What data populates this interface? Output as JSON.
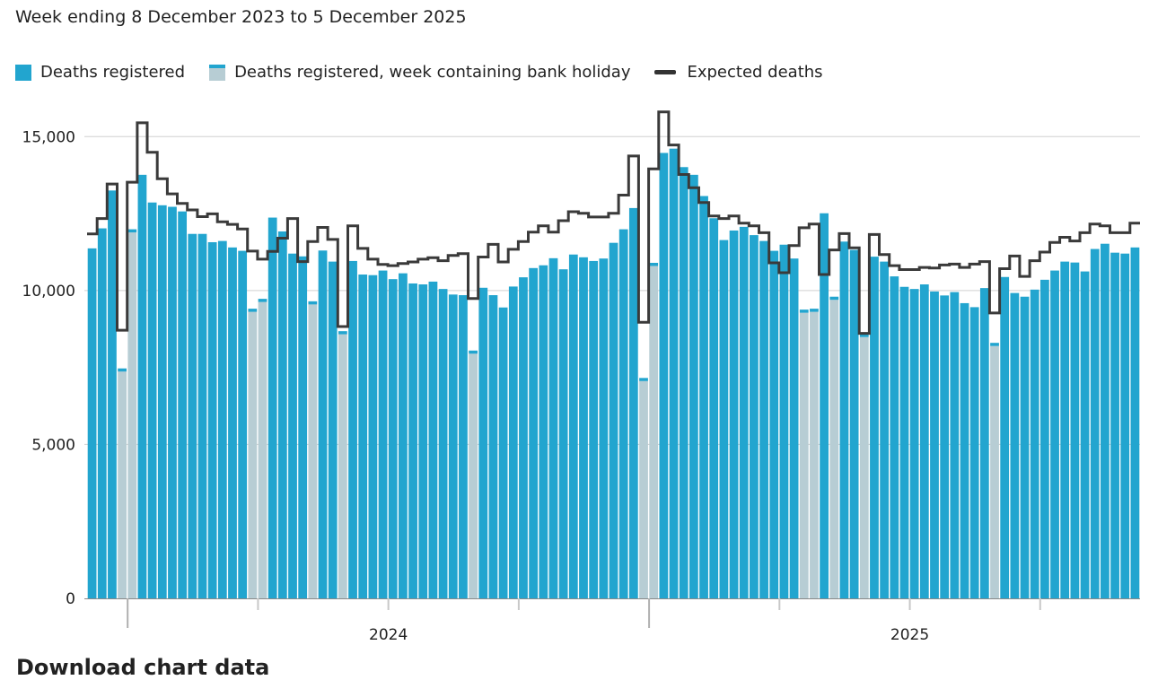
{
  "chart_data": {
    "type": "bar",
    "title": "Week ending 8 December 2023 to 5 December 2025",
    "xlabel": "",
    "ylabel": "",
    "ylim": [
      0,
      16000
    ],
    "grid": "horizontal",
    "legend_position": "top-left",
    "y_ticks": [
      {
        "value": 0,
        "label": "0"
      },
      {
        "value": 5000,
        "label": "5,000"
      },
      {
        "value": 10000,
        "label": "10,000"
      },
      {
        "value": 15000,
        "label": "15,000"
      }
    ],
    "x_year_labels": [
      {
        "label": "2024",
        "week_index": 30
      },
      {
        "label": "2025",
        "week_index": 82
      }
    ],
    "x_year_boundary_weeks": [
      4,
      56
    ],
    "x_quarter_tick_weeks": [
      17,
      30,
      43,
      69,
      82,
      95
    ],
    "legend": [
      {
        "key": "deaths",
        "label": "Deaths registered",
        "color": "#22a5cf",
        "kind": "bar"
      },
      {
        "key": "holiday",
        "label": "Deaths registered, week containing bank holiday",
        "color": "#b7cdd4",
        "kind": "bar"
      },
      {
        "key": "expected",
        "label": "Expected deaths",
        "color": "#333333",
        "kind": "line"
      }
    ],
    "holiday_weeks": [
      4,
      5,
      17,
      18,
      23,
      26,
      39,
      56,
      57,
      72,
      73,
      75,
      78,
      91
    ],
    "series": [
      {
        "name": "Deaths registered",
        "type": "bar",
        "values": [
          11370,
          12020,
          13250,
          7470,
          11990,
          13760,
          12860,
          12770,
          12720,
          12570,
          11840,
          11840,
          11570,
          11610,
          11400,
          11290,
          9410,
          9730,
          12370,
          11920,
          11200,
          11110,
          9650,
          11300,
          10940,
          8680,
          10960,
          10520,
          10500,
          10650,
          10370,
          10560,
          10230,
          10200,
          10290,
          10050,
          9870,
          9850,
          8050,
          10090,
          9850,
          9450,
          10130,
          10430,
          10730,
          10820,
          11050,
          10690,
          11170,
          11080,
          10960,
          11040,
          11550,
          11990,
          12680,
          7160,
          10900,
          14470,
          14610,
          14010,
          13760,
          13070,
          12350,
          11640,
          11950,
          12070,
          11800,
          11610,
          11290,
          11490,
          11040,
          9380,
          9410,
          12510,
          9800,
          11590,
          11320,
          8590,
          11100,
          10940,
          10460,
          10120,
          10050,
          10200,
          9970,
          9840,
          9950,
          9590,
          9460,
          10080,
          8300,
          10440,
          9920,
          9800,
          10030,
          10350,
          10650,
          10940,
          10910,
          10620,
          11350,
          11520,
          11230,
          11200,
          11400
        ]
      },
      {
        "name": "Expected deaths",
        "type": "line",
        "values": [
          11840,
          12340,
          13460,
          8710,
          13520,
          15450,
          14490,
          13630,
          13140,
          12830,
          12620,
          12400,
          12490,
          12230,
          12150,
          12000,
          11280,
          11020,
          11270,
          11700,
          12340,
          10940,
          11590,
          12050,
          11660,
          8830,
          12100,
          11370,
          11020,
          10850,
          10810,
          10880,
          10930,
          11020,
          11070,
          10970,
          11140,
          11200,
          9740,
          11090,
          11500,
          10930,
          11340,
          11590,
          11900,
          12100,
          11900,
          12270,
          12560,
          12510,
          12390,
          12390,
          12510,
          13100,
          14370,
          8970,
          13950,
          15800,
          14730,
          13770,
          13340,
          12860,
          12420,
          12340,
          12420,
          12190,
          12100,
          11880,
          10900,
          10580,
          11460,
          12040,
          12160,
          10520,
          11320,
          11850,
          11390,
          8610,
          11820,
          11170,
          10810,
          10680,
          10680,
          10750,
          10730,
          10830,
          10860,
          10750,
          10860,
          10940,
          9270,
          10710,
          11120,
          10460,
          10970,
          11250,
          11560,
          11730,
          11610,
          11880,
          12160,
          12100,
          11880,
          11880,
          12190
        ]
      }
    ]
  },
  "page": {
    "subtitle": "Week ending 8 December 2023 to 5 December 2025",
    "bottom_heading": "Download chart data"
  }
}
